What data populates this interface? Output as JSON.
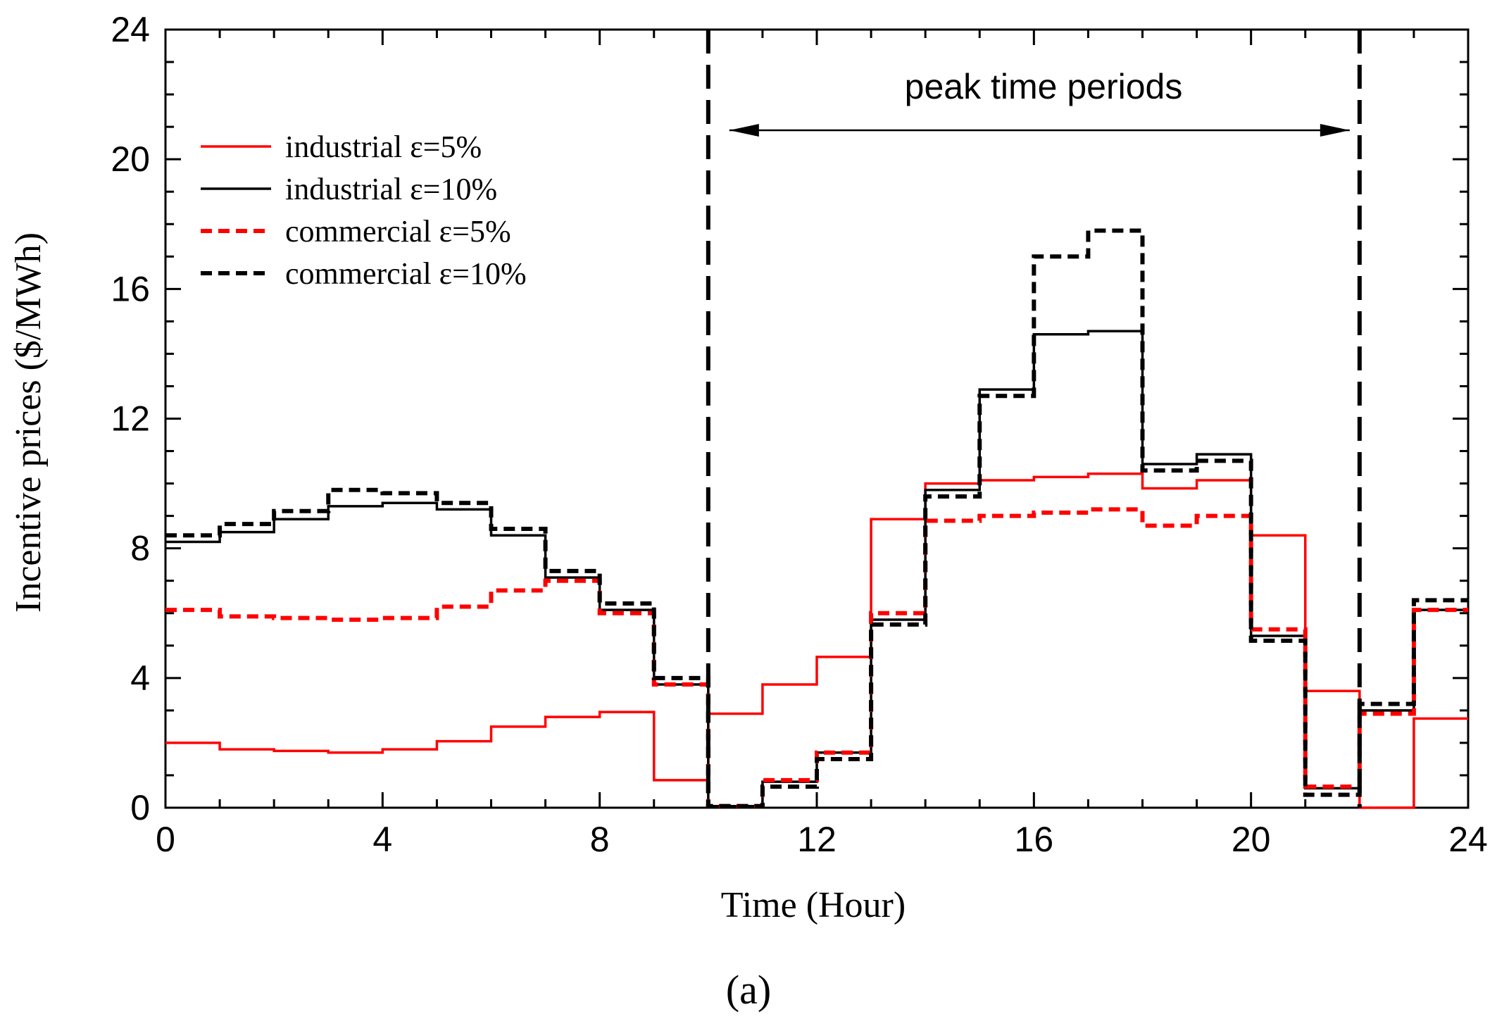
{
  "chart_data": {
    "type": "line",
    "step": "post",
    "xlabel": "Time (Hour)",
    "ylabel": "Incentive prices ($/MWh)",
    "xlim": [
      0,
      24
    ],
    "ylim": [
      0,
      24
    ],
    "xticks": [
      "0",
      "4",
      "8",
      "12",
      "16",
      "20",
      "24"
    ],
    "yticks": [
      "0",
      "4",
      "8",
      "12",
      "16",
      "20",
      "24"
    ],
    "x": [
      0,
      1,
      2,
      3,
      4,
      5,
      6,
      7,
      8,
      9,
      10,
      11,
      12,
      13,
      14,
      15,
      16,
      17,
      18,
      19,
      20,
      21,
      22,
      23,
      24
    ],
    "series": [
      {
        "name": "industrial ε=5%",
        "color": "#ff0000",
        "style": "solid",
        "values": [
          2.0,
          1.8,
          1.75,
          1.7,
          1.8,
          2.05,
          2.5,
          2.8,
          2.95,
          0.85,
          2.9,
          3.8,
          4.65,
          8.9,
          10.0,
          10.1,
          10.2,
          10.3,
          9.85,
          10.1,
          8.4,
          3.6,
          0.0,
          2.75,
          2.75
        ]
      },
      {
        "name": "industrial ε=10%",
        "color": "#000000",
        "style": "solid",
        "values": [
          8.2,
          8.5,
          8.9,
          9.3,
          9.4,
          9.2,
          8.4,
          7.1,
          6.1,
          3.8,
          0.05,
          0.8,
          1.7,
          5.8,
          9.8,
          12.9,
          14.6,
          14.7,
          10.6,
          10.9,
          5.3,
          0.6,
          3.0,
          6.1,
          6.1
        ]
      },
      {
        "name": "commercial ε=5%",
        "color": "#ff0000",
        "style": "dashed",
        "values": [
          6.1,
          5.9,
          5.85,
          5.8,
          5.85,
          6.2,
          6.7,
          7.0,
          6.0,
          3.8,
          0.05,
          0.85,
          1.7,
          6.0,
          8.85,
          9.0,
          9.1,
          9.2,
          8.7,
          9.0,
          5.5,
          0.65,
          2.9,
          6.1,
          6.1
        ]
      },
      {
        "name": "commercial ε=10%",
        "color": "#000000",
        "style": "dashed",
        "values": [
          8.4,
          8.75,
          9.15,
          9.8,
          9.7,
          9.4,
          8.6,
          7.3,
          6.3,
          4.0,
          0.05,
          0.65,
          1.5,
          5.65,
          9.6,
          12.7,
          17.0,
          17.8,
          10.4,
          10.7,
          5.15,
          0.4,
          3.2,
          6.4,
          6.4
        ]
      }
    ],
    "peak_boundaries": [
      10,
      22
    ],
    "annotation": "peak time periods",
    "legend_position": "top-left",
    "panel_label": "(a)"
  }
}
